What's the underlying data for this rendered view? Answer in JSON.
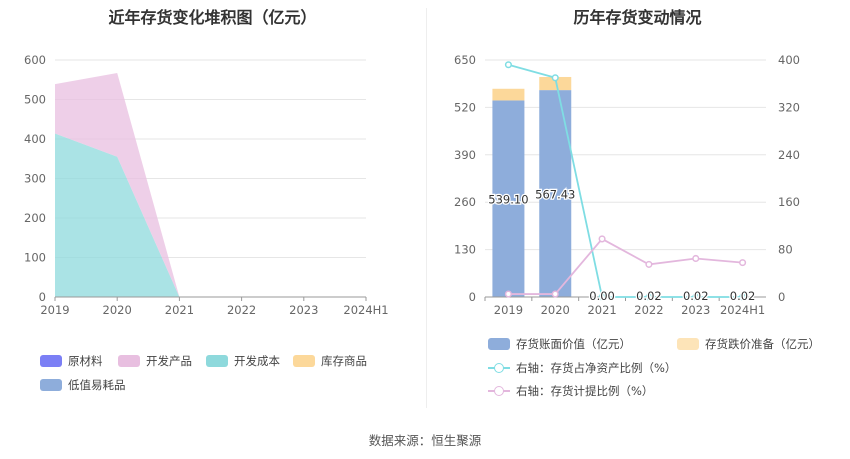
{
  "footer": {
    "source": "数据来源：恒生聚源"
  },
  "colors": {
    "raw_material": "#7b7ff5",
    "dev_product": "#e8bfe0",
    "dev_cost": "#8ed9dc",
    "inventory_goods": "#fcd89a",
    "low_value": "#8eaddb",
    "book_value": "#8eaddb",
    "provision": "#fde4b8",
    "ratio_line": "#7fdde3",
    "provision_ratio_line": "#e3b7dd"
  },
  "chart_data": [
    {
      "type": "area",
      "stacked": true,
      "title": "近年存货变化堆积图（亿元）",
      "categories": [
        "2019",
        "2020",
        "2021",
        "2022",
        "2023",
        "2024H1"
      ],
      "ylim": [
        0,
        600
      ],
      "yticks": [
        "0",
        "100",
        "200",
        "300",
        "400",
        "500",
        "600"
      ],
      "grid": true,
      "legend_position": "bottom-left",
      "series": [
        {
          "name": "原材料",
          "values": [
            0,
            0,
            0,
            0,
            0,
            0
          ]
        },
        {
          "name": "开发产品",
          "values": [
            125,
            212,
            0,
            0,
            0,
            0
          ]
        },
        {
          "name": "开发成本",
          "values": [
            414,
            355,
            0,
            0,
            0,
            0
          ]
        },
        {
          "name": "库存商品",
          "values": [
            0,
            0,
            0,
            0,
            0,
            0
          ]
        },
        {
          "name": "低值易耗品",
          "values": [
            0,
            0,
            0,
            0,
            0,
            0
          ]
        }
      ]
    },
    {
      "type": "bar",
      "stacked": true,
      "title": "历年存货变动情况",
      "categories": [
        "2019",
        "2020",
        "2021",
        "2022",
        "2023",
        "2024H1"
      ],
      "ylim": [
        0,
        650
      ],
      "yticks": [
        "0",
        "130",
        "260",
        "390",
        "520",
        "650"
      ],
      "y2lim": [
        0,
        400
      ],
      "y2ticks": [
        "0",
        "80",
        "160",
        "240",
        "320",
        "400"
      ],
      "grid": true,
      "legend_position": "bottom",
      "series": [
        {
          "name": "存货账面价值（亿元）",
          "values": [
            539.1,
            567.43,
            0.0,
            0.02,
            0.02,
            0.02
          ],
          "labels": [
            "539.10",
            "567.43",
            "0.00",
            "0.02",
            "0.02",
            "0.02"
          ]
        },
        {
          "name": "存货跌价准备（亿元）",
          "values": [
            32,
            36,
            0,
            0,
            0,
            0
          ]
        }
      ],
      "lines": [
        {
          "name": "右轴：存货占净资产比例（%）",
          "axis": "right",
          "values": [
            392,
            370,
            0,
            0,
            0,
            0
          ]
        },
        {
          "name": "右轴：存货计提比例（%）",
          "axis": "right",
          "values": [
            5,
            5,
            98,
            55,
            65,
            58
          ]
        }
      ]
    }
  ]
}
